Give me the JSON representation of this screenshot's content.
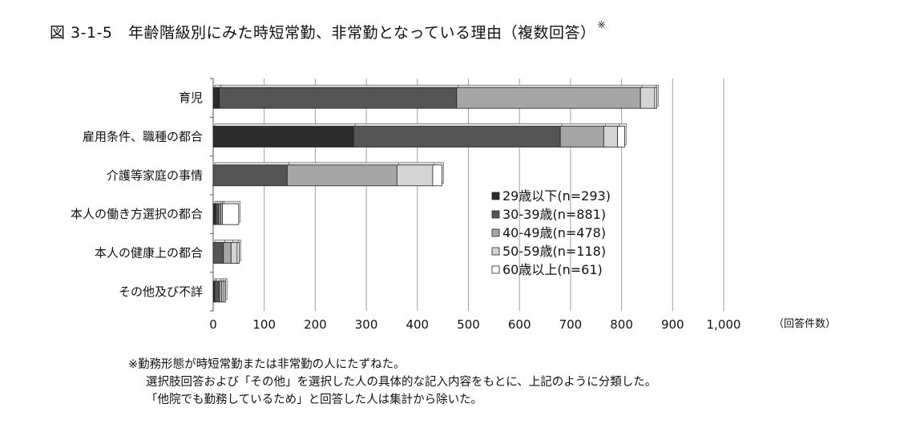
{
  "title": "図 3-1-5　年齢階級別にみた時短常勤、非常勤となっている理由（複数回答）",
  "title_mark": "※",
  "chart_data": {
    "type": "bar",
    "orientation": "horizontal",
    "stacked": true,
    "categories": [
      "育児",
      "雇用条件、職種の都合",
      "介護等家庭の事情",
      "本人の働き方選択の都合",
      "本人の健康上の都合",
      "その他及び不詳"
    ],
    "series": [
      {
        "name": "29歳以下(n=293)",
        "color": "#2b2b2b",
        "values": [
          12,
          275,
          0,
          5,
          0,
          3
        ]
      },
      {
        "name": "30-39歳(n=881)",
        "color": "#555555",
        "values": [
          465,
          405,
          145,
          6,
          20,
          9
        ]
      },
      {
        "name": "40-49歳(n=478)",
        "color": "#a6a6a6",
        "values": [
          360,
          85,
          215,
          4,
          15,
          5
        ]
      },
      {
        "name": "50-59歳(n=118)",
        "color": "#d4d4d4",
        "values": [
          28,
          27,
          70,
          3,
          12,
          4
        ]
      },
      {
        "name": "60歳以上(n=61)",
        "color": "#ffffff",
        "values": [
          4,
          14,
          18,
          32,
          4,
          3
        ]
      }
    ],
    "xlim": [
      0,
      1000
    ],
    "xticks": [
      "0",
      "100",
      "200",
      "300",
      "400",
      "500",
      "600",
      "700",
      "800",
      "900",
      "1,000"
    ],
    "xunit": "（回答件数）",
    "grid": true,
    "legend_position": "inside-right"
  },
  "notes": [
    "※勤務形態が時短常勤または非常勤の人にたずねた。",
    "選択肢回答および「その他」を選択した人の具体的な記入内容をもとに、上記のように分類した。",
    "「他院でも勤務しているため」と回答した人は集計から除いた。"
  ]
}
